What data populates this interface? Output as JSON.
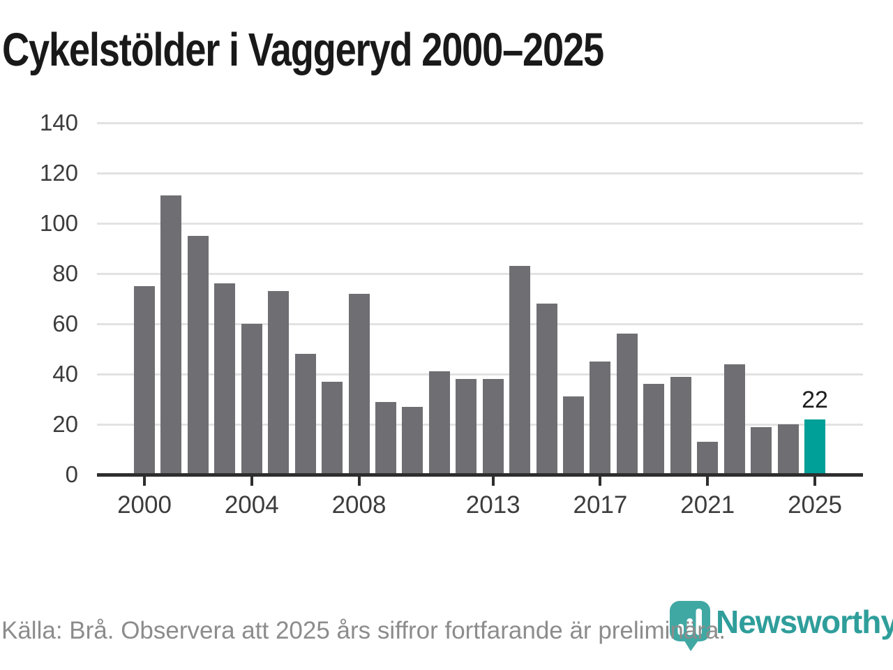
{
  "title": "Cykelstölder i Vaggeryd 2000–2025",
  "footer": {
    "source_note": "Källa: Brå. Observera att 2025 års siffror fortfarande är preliminära."
  },
  "branding": {
    "logo_text": "Newsworthy",
    "logo_icon": "newsworthy-speech-bubble-bar-chart-icon"
  },
  "colors": {
    "bar": "#6f6e73",
    "highlight_bar": "#00a099",
    "gridline": "#e2e2e2",
    "axis_line": "#2e2e2e",
    "axis_label": "#3c3c3c",
    "title_text": "#191919",
    "footer_text": "#8c8c8c",
    "logo_icon_fill": "#40a8a3",
    "logo_text_color": "#2f9e9b"
  },
  "chart_data": {
    "type": "bar",
    "title": "Cykelstölder i Vaggeryd 2000–2025",
    "x": [
      2000,
      2001,
      2002,
      2003,
      2004,
      2005,
      2006,
      2007,
      2008,
      2009,
      2010,
      2011,
      2012,
      2013,
      2014,
      2015,
      2016,
      2017,
      2018,
      2019,
      2020,
      2021,
      2022,
      2023,
      2024,
      2025
    ],
    "values": [
      75,
      111,
      95,
      76,
      60,
      73,
      48,
      37,
      72,
      29,
      27,
      41,
      38,
      38,
      83,
      68,
      31,
      45,
      56,
      36,
      39,
      13,
      44,
      19,
      20,
      22
    ],
    "highlight_year": 2025,
    "highlight_value_label": "22",
    "x_tick_labels": [
      "2000",
      "2004",
      "2008",
      "2013",
      "2017",
      "2021",
      "2025"
    ],
    "y_ticks": [
      0,
      20,
      40,
      60,
      80,
      100,
      120,
      140
    ],
    "ylim": [
      0,
      140
    ],
    "xlabel": "",
    "ylabel": "",
    "grid": "horizontal-only",
    "legend": "none"
  }
}
